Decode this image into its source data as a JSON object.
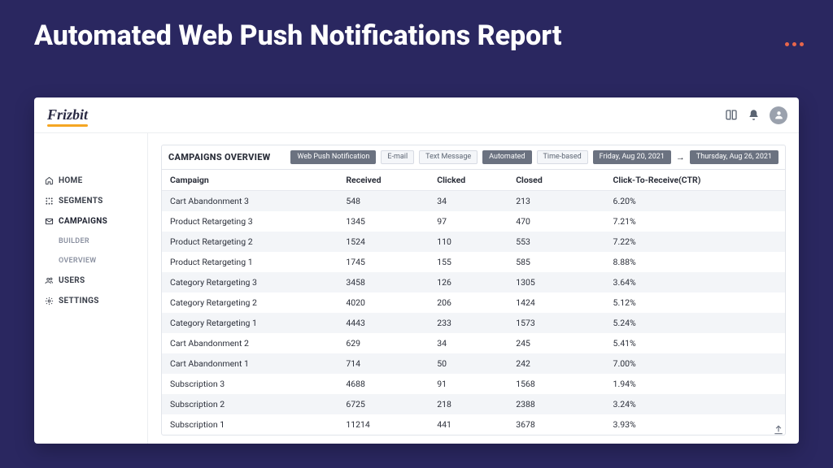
{
  "page": {
    "title": "Automated Web Push Notifications Report"
  },
  "brand": {
    "name": "Frizbit"
  },
  "sidebar": {
    "items": [
      {
        "label": "HOME",
        "icon": "home"
      },
      {
        "label": "SEGMENTS",
        "icon": "segments"
      },
      {
        "label": "CAMPAIGNS",
        "icon": "campaigns"
      },
      {
        "label": "BUILDER",
        "sub": true
      },
      {
        "label": "OVERVIEW",
        "sub": true
      },
      {
        "label": "USERS",
        "icon": "users"
      },
      {
        "label": "SETTINGS",
        "icon": "settings"
      }
    ]
  },
  "overview": {
    "title": "CAMPAIGNS OVERVIEW",
    "filters": {
      "channel_active": "Web Push Notification",
      "channel_email": "E-mail",
      "channel_sms": "Text Message",
      "mode_active": "Automated",
      "mode_time": "Time-based",
      "date_from": "Friday, Aug 20, 2021",
      "date_to": "Thursday, Aug 26, 2021"
    },
    "columns": {
      "campaign": "Campaign",
      "received": "Received",
      "clicked": "Clicked",
      "closed": "Closed",
      "ctr": "Click-To-Receive(CTR)"
    },
    "rows": [
      {
        "name": "Cart Abandonment 3",
        "received": "548",
        "clicked": "34",
        "closed": "213",
        "ctr": "6.20%"
      },
      {
        "name": "Product Retargeting 3",
        "received": "1345",
        "clicked": "97",
        "closed": "470",
        "ctr": "7.21%"
      },
      {
        "name": "Product Retargeting 2",
        "received": "1524",
        "clicked": "110",
        "closed": "553",
        "ctr": "7.22%"
      },
      {
        "name": "Product Retargeting 1",
        "received": "1745",
        "clicked": "155",
        "closed": "585",
        "ctr": "8.88%"
      },
      {
        "name": "Category Retargeting 3",
        "received": "3458",
        "clicked": "126",
        "closed": "1305",
        "ctr": "3.64%"
      },
      {
        "name": "Category Retargeting 2",
        "received": "4020",
        "clicked": "206",
        "closed": "1424",
        "ctr": "5.12%"
      },
      {
        "name": "Category Retargeting 1",
        "received": "4443",
        "clicked": "233",
        "closed": "1573",
        "ctr": "5.24%"
      },
      {
        "name": "Cart Abandonment 2",
        "received": "629",
        "clicked": "34",
        "closed": "245",
        "ctr": "5.41%"
      },
      {
        "name": "Cart Abandonment 1",
        "received": "714",
        "clicked": "50",
        "closed": "242",
        "ctr": "7.00%"
      },
      {
        "name": "Subscription 3",
        "received": "4688",
        "clicked": "91",
        "closed": "1568",
        "ctr": "1.94%"
      },
      {
        "name": "Subscription 2",
        "received": "6725",
        "clicked": "218",
        "closed": "2388",
        "ctr": "3.24%"
      },
      {
        "name": "Subscription 1",
        "received": "11214",
        "clicked": "441",
        "closed": "3678",
        "ctr": "3.93%"
      }
    ]
  },
  "theme": {
    "page_bg": "#2a2760",
    "accent_dots": "#e8664b",
    "chip_dark_bg": "#6b7280",
    "row_stripe": "#f3f5f8",
    "border": "#e1e4ea"
  }
}
